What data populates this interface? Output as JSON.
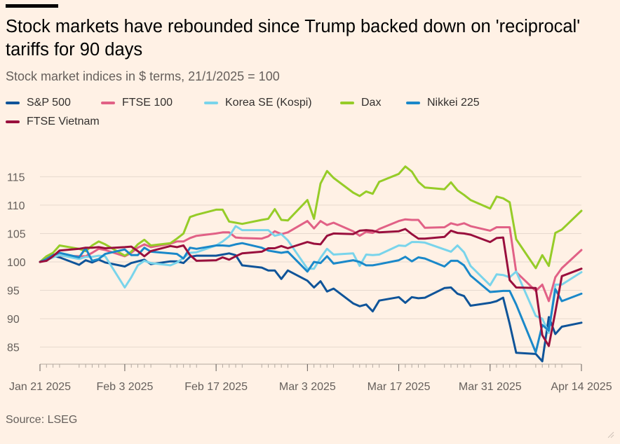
{
  "header": {
    "title": "Stock markets have rebounded since Trump backed down on 'reciprocal' tariffs for 90 days",
    "subtitle": "Stock market indices in $ terms, 21/1/2025 = 100"
  },
  "footer": {
    "source": "Source: LSEG"
  },
  "chart_data": {
    "type": "line",
    "title": "Stock markets have rebounded since Trump backed down on 'reciprocal' tariffs for 90 days",
    "subtitle": "Stock market indices in $ terms, 21/1/2025 = 100",
    "xlabel": "",
    "ylabel": "",
    "ylim": [
      82,
      118
    ],
    "y_ticks": [
      85,
      90,
      95,
      100,
      105,
      110,
      115
    ],
    "x_tick_labels": [
      "Jan 21 2025",
      "Feb 3 2025",
      "Feb 17 2025",
      "Mar 3 2025",
      "Mar 17 2025",
      "Mar 31 2025",
      "Apr 14 2025"
    ],
    "x_tick_dates": [
      "2025-01-21",
      "2025-02-03",
      "2025-02-17",
      "2025-03-03",
      "2025-03-17",
      "2025-03-31",
      "2025-04-14"
    ],
    "x_range": [
      "2025-01-21",
      "2025-04-14"
    ],
    "grid": "horizontal",
    "legend_position": "top-left",
    "x": [
      "2025-01-21",
      "2025-01-22",
      "2025-01-23",
      "2025-01-24",
      "2025-01-27",
      "2025-01-28",
      "2025-01-29",
      "2025-01-30",
      "2025-01-31",
      "2025-02-03",
      "2025-02-04",
      "2025-02-05",
      "2025-02-06",
      "2025-02-07",
      "2025-02-10",
      "2025-02-11",
      "2025-02-12",
      "2025-02-13",
      "2025-02-14",
      "2025-02-17",
      "2025-02-18",
      "2025-02-19",
      "2025-02-20",
      "2025-02-21",
      "2025-02-24",
      "2025-02-25",
      "2025-02-26",
      "2025-02-27",
      "2025-02-28",
      "2025-03-03",
      "2025-03-04",
      "2025-03-05",
      "2025-03-06",
      "2025-03-07",
      "2025-03-10",
      "2025-03-11",
      "2025-03-12",
      "2025-03-13",
      "2025-03-14",
      "2025-03-17",
      "2025-03-18",
      "2025-03-19",
      "2025-03-20",
      "2025-03-21",
      "2025-03-24",
      "2025-03-25",
      "2025-03-26",
      "2025-03-27",
      "2025-03-28",
      "2025-03-31",
      "2025-04-01",
      "2025-04-02",
      "2025-04-03",
      "2025-04-04",
      "2025-04-07",
      "2025-04-08",
      "2025-04-09",
      "2025-04-10",
      "2025-04-11",
      "2025-04-14"
    ],
    "series": [
      {
        "name": "S&P 500",
        "color": "#0F5499",
        "values": [
          100,
          100.6,
          101.1,
          100.8,
          99.5,
          100.3,
          99.9,
          100.4,
          99.9,
          99.2,
          99.8,
          100.1,
          100.4,
          99.6,
          100.1,
          100.1,
          99.8,
          100.9,
          101.1,
          101.1,
          101.3,
          101.5,
          101.2,
          99.4,
          99,
          98.5,
          98.5,
          97,
          98.5,
          96.7,
          95.5,
          96.6,
          94.8,
          95.3,
          92.7,
          92.2,
          92.5,
          91.3,
          93.2,
          93.8,
          92.8,
          93.8,
          93.6,
          93.7,
          95.4,
          95.5,
          94.4,
          94,
          92.3,
          92.8,
          93.1,
          93.7,
          89.1,
          84,
          83.8,
          82.5,
          90.3,
          87.3,
          88.6,
          89.3
        ]
      },
      {
        "name": "FTSE 100",
        "color": "#E16186",
        "values": [
          100,
          100.6,
          101.3,
          101.1,
          101,
          101,
          101.6,
          102.3,
          102.1,
          101,
          101.6,
          102.5,
          103.1,
          102.6,
          103.2,
          103.6,
          103.6,
          104.2,
          104.6,
          105,
          105.2,
          105.2,
          104.3,
          104.2,
          104.1,
          104.5,
          105.4,
          104.9,
          105.2,
          107.2,
          105.9,
          107.2,
          106.5,
          106.9,
          105.4,
          104.6,
          105.3,
          105.1,
          105.8,
          107.2,
          107.5,
          107.4,
          107.4,
          106,
          106.1,
          106.8,
          106.5,
          106.8,
          106.3,
          105.5,
          106.1,
          106.1,
          106.1,
          98.2,
          94.9,
          96,
          93.1,
          97.3,
          98.9,
          102.1
        ]
      },
      {
        "name": "Korea SE (Kospi)",
        "color": "#79D4EB",
        "values": [
          100,
          100.3,
          100.8,
          101.2,
          100.5,
          100.9,
          100.9,
          101.1,
          101,
          95.5,
          97.3,
          99.4,
          100.2,
          99.8,
          99.4,
          99.9,
          100.7,
          101.6,
          101.7,
          102.9,
          103.6,
          104.5,
          106.3,
          105.6,
          105.6,
          105.6,
          104.6,
          104.9,
          103.8,
          98.8,
          98.8,
          100.7,
          102.3,
          101.3,
          101.5,
          99.3,
          101.3,
          101.2,
          101.3,
          102.9,
          102.8,
          103.5,
          103.5,
          103.4,
          102.2,
          101.8,
          102.9,
          101.7,
          99.3,
          95.9,
          97.8,
          97.7,
          97.3,
          98.3,
          90.5,
          90,
          87.5,
          96,
          96,
          98.2
        ]
      },
      {
        "name": "Dax",
        "color": "#96CC28",
        "values": [
          100,
          101,
          101.6,
          102.9,
          102.3,
          101.9,
          102.9,
          103.6,
          103.1,
          101.1,
          101.8,
          103.1,
          103.9,
          102.9,
          103.3,
          104.1,
          105,
          107.9,
          108.3,
          109.2,
          109.2,
          107.1,
          106.9,
          106.7,
          107.4,
          107.6,
          109.3,
          107.4,
          107.3,
          110.9,
          107.6,
          113.8,
          116,
          114.8,
          112.2,
          111.6,
          112.4,
          112,
          114.1,
          115.5,
          116.8,
          115.9,
          114.1,
          113.1,
          112.8,
          114,
          112.6,
          111.8,
          110.9,
          109.4,
          111.5,
          111.2,
          110.5,
          104,
          98.9,
          101.2,
          99.3,
          105.1,
          105.7,
          109
        ]
      },
      {
        "name": "Nikkei 225",
        "color": "#1A88C9",
        "values": [
          100,
          100.5,
          101.2,
          101.6,
          100.8,
          102.4,
          100.2,
          100.5,
          101.4,
          102.2,
          101.2,
          101.2,
          102.5,
          101.8,
          101.5,
          101.4,
          100.6,
          102.5,
          102.3,
          102.9,
          102.9,
          102.8,
          103.1,
          103.3,
          102.5,
          102,
          101.8,
          101.6,
          101.8,
          98.3,
          100,
          99.8,
          101,
          99.7,
          100.3,
          100,
          99.4,
          99.4,
          99.6,
          100.3,
          100.9,
          100.1,
          100.8,
          100.6,
          99.2,
          100.2,
          100.2,
          99.4,
          97.6,
          94.7,
          94.8,
          94.9,
          94.9,
          92.5,
          84.1,
          88.9,
          87.9,
          95.2,
          93.1,
          94.4
        ]
      },
      {
        "name": "FTSE Vietnam",
        "color": "#990F3D",
        "values": [
          100,
          100.2,
          101,
          102,
          102.3,
          102.5,
          102.5,
          102.6,
          102.4,
          102.6,
          102.7,
          101.9,
          101,
          101.9,
          102.8,
          102.6,
          102.9,
          101.2,
          100.2,
          100.3,
          100.8,
          100.4,
          101,
          101.5,
          101.8,
          102.4,
          102.4,
          102.8,
          102.4,
          103.5,
          103.2,
          103.1,
          104.6,
          105,
          104.9,
          105.5,
          105.6,
          105.5,
          105.2,
          105.4,
          105.8,
          104.9,
          104.1,
          104.1,
          104.4,
          105.5,
          105.1,
          105,
          104.8,
          103.5,
          104.2,
          104.3,
          96.8,
          95.5,
          95.4,
          87.1,
          85.2,
          91.2,
          97.5,
          98.8
        ]
      }
    ]
  }
}
